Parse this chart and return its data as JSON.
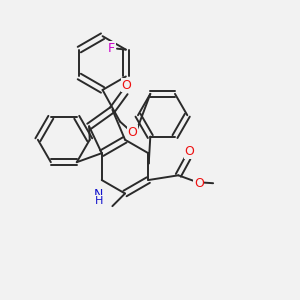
{
  "background_color": "#f2f2f2",
  "bond_color": "#2a2a2a",
  "atom_colors": {
    "O": "#ee1111",
    "N": "#1111cc",
    "F": "#cc00cc",
    "C": "#2a2a2a"
  }
}
